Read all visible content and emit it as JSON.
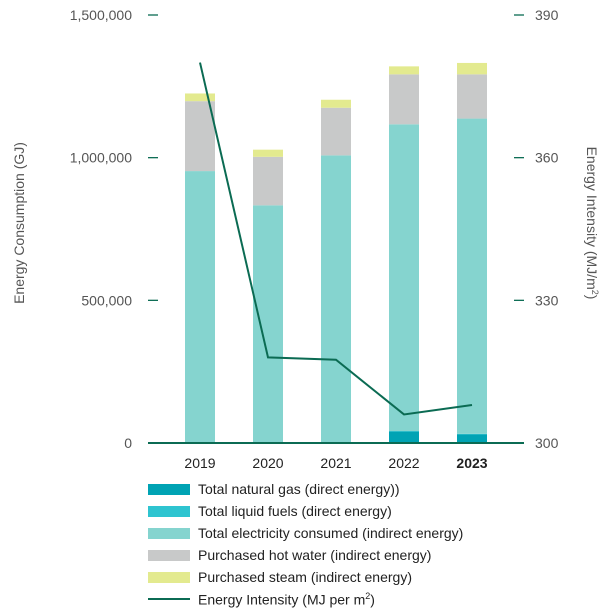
{
  "chart_data": {
    "type": "bar",
    "stacked": true,
    "categories": [
      "2019",
      "2020",
      "2021",
      "2022",
      "2023"
    ],
    "highlight_category": "2023",
    "series": [
      {
        "name": "Total natural gas (direct energy))",
        "values": [
          2000,
          2000,
          2000,
          40000,
          30000
        ],
        "color": "#00a3b4"
      },
      {
        "name": "Total liquid fuels (direct energy)",
        "values": [
          1000,
          1000,
          1000,
          2000,
          2000
        ],
        "color": "#2ec4d0"
      },
      {
        "name": "Total electricity consumed (indirect energy)",
        "values": [
          950000,
          830000,
          1005000,
          1075000,
          1105000
        ],
        "color": "#85d4cf"
      },
      {
        "name": "Purchased hot water (indirect energy)",
        "values": [
          245000,
          170000,
          167000,
          175000,
          155000
        ],
        "color": "#c8c9c9"
      },
      {
        "name": "Purchased steam (indirect energy)",
        "values": [
          27000,
          25000,
          28000,
          28000,
          40000
        ],
        "color": "#e3ea8f"
      }
    ],
    "line_series": {
      "name_prefix": "Energy Intensity (MJ per m",
      "name_sup": "2",
      "name_suffix": ")",
      "values": [
        380,
        318,
        317.5,
        306,
        308
      ],
      "color": "#0b6b53",
      "axis": "right"
    },
    "y_left": {
      "label": "Energy Consumption (GJ)",
      "lim": [
        0,
        1500000
      ],
      "ticks": [
        "0",
        "500,000",
        "1,000,000",
        "1,500,000"
      ],
      "tick_values": [
        0,
        500000,
        1000000,
        1500000
      ]
    },
    "y_right": {
      "label_prefix": "Energy Intensity (MJ/m",
      "label_sup": "2",
      "label_suffix": ")",
      "lim": [
        300,
        390
      ],
      "ticks": [
        "300",
        "330",
        "360",
        "390"
      ],
      "tick_values": [
        300,
        330,
        360,
        390
      ]
    },
    "legend_position": "bottom",
    "baseline_color": "#0b6b53"
  }
}
